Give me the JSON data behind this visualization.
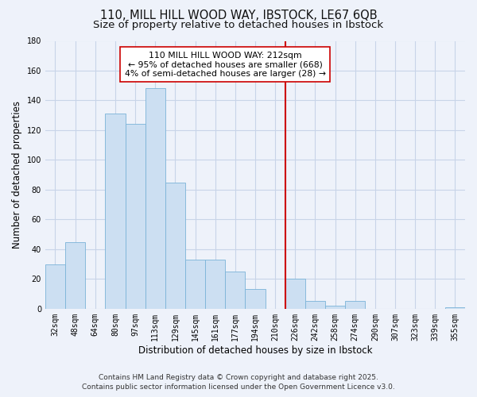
{
  "title_line1": "110, MILL HILL WOOD WAY, IBSTOCK, LE67 6QB",
  "title_line2": "Size of property relative to detached houses in Ibstock",
  "xlabel": "Distribution of detached houses by size in Ibstock",
  "ylabel": "Number of detached properties",
  "bar_labels": [
    "32sqm",
    "48sqm",
    "64sqm",
    "80sqm",
    "97sqm",
    "113sqm",
    "129sqm",
    "145sqm",
    "161sqm",
    "177sqm",
    "194sqm",
    "210sqm",
    "226sqm",
    "242sqm",
    "258sqm",
    "274sqm",
    "290sqm",
    "307sqm",
    "323sqm",
    "339sqm",
    "355sqm"
  ],
  "bar_values": [
    30,
    45,
    0,
    131,
    124,
    148,
    85,
    33,
    33,
    25,
    13,
    0,
    20,
    5,
    2,
    5,
    0,
    0,
    0,
    0,
    1
  ],
  "bar_color": "#ccdff2",
  "bar_edge_color": "#7ab3d8",
  "vline_x": 11.5,
  "vline_color": "#cc0000",
  "ylim": [
    0,
    180
  ],
  "yticks": [
    0,
    20,
    40,
    60,
    80,
    100,
    120,
    140,
    160,
    180
  ],
  "annotation_title": "110 MILL HILL WOOD WAY: 212sqm",
  "annotation_line2": "← 95% of detached houses are smaller (668)",
  "annotation_line3": "4% of semi-detached houses are larger (28) →",
  "footer_line1": "Contains HM Land Registry data © Crown copyright and database right 2025.",
  "footer_line2": "Contains public sector information licensed under the Open Government Licence v3.0.",
  "background_color": "#eef2fa",
  "grid_color": "#c8d4e8",
  "title_fontsize": 10.5,
  "subtitle_fontsize": 9.5,
  "axis_label_fontsize": 8.5,
  "tick_fontsize": 7,
  "annotation_fontsize": 7.8,
  "footer_fontsize": 6.5
}
